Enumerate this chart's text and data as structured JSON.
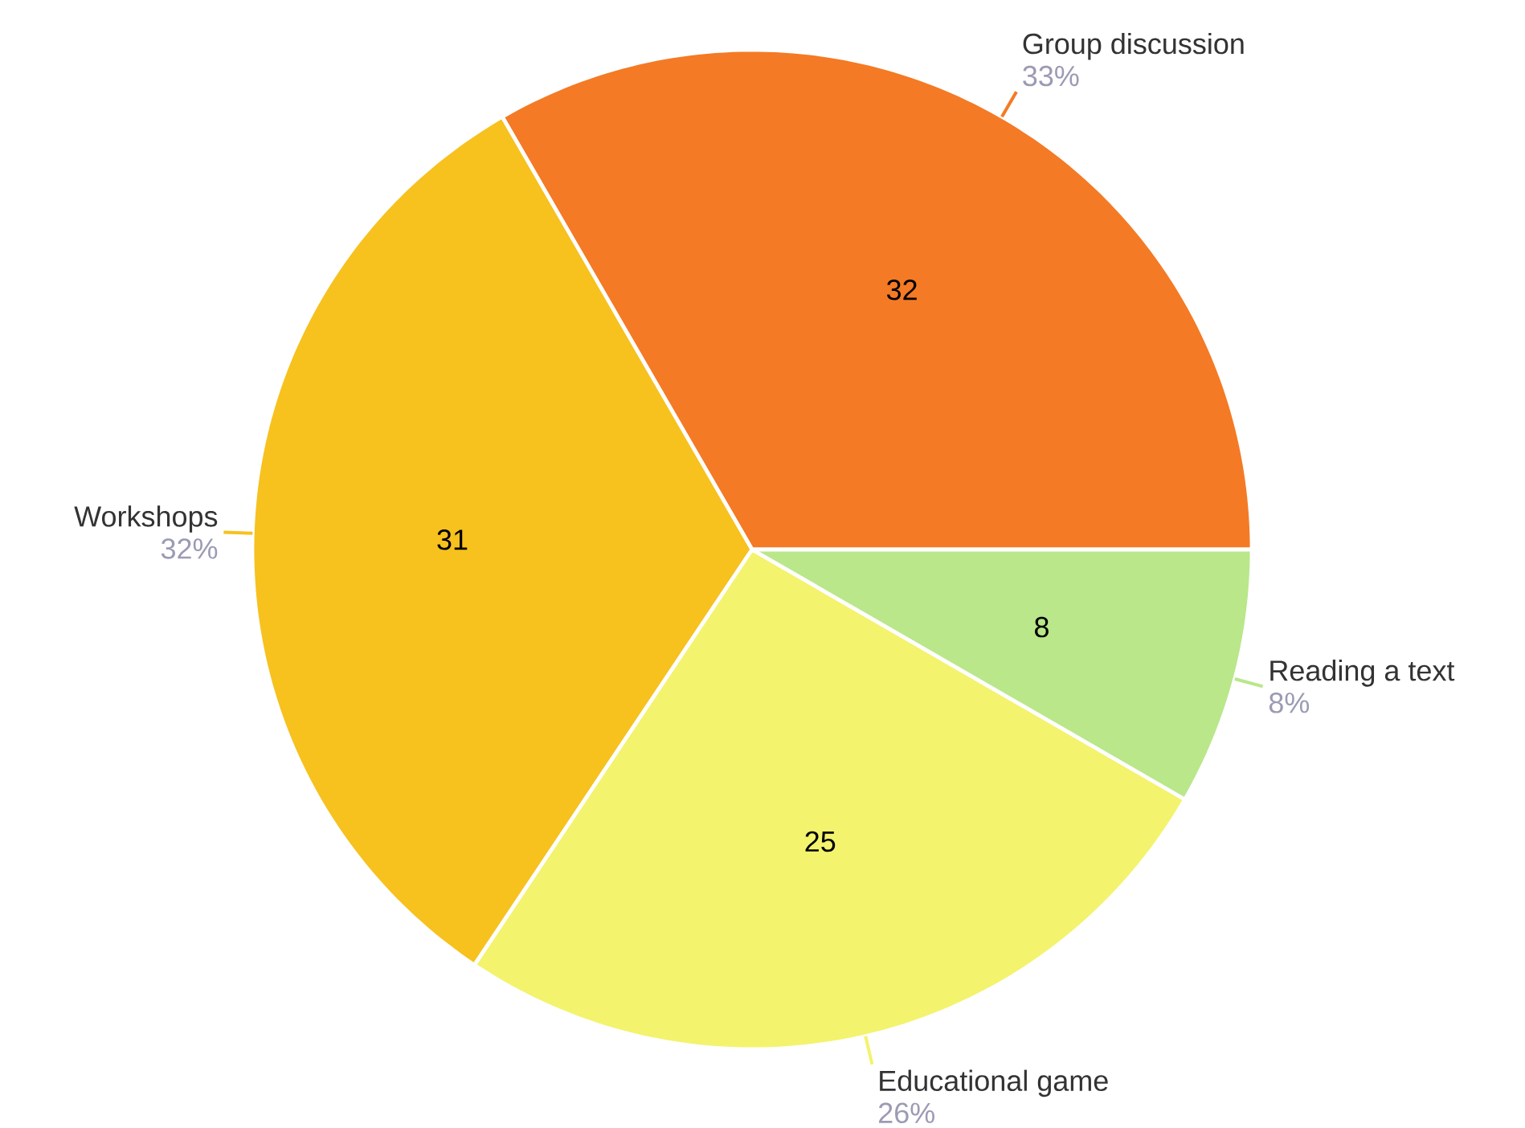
{
  "chart_data": {
    "type": "pie",
    "categories": [
      "Group discussion",
      "Workshops",
      "Educational game",
      "Reading a text"
    ],
    "values": [
      32,
      31,
      25,
      8
    ],
    "colors": [
      "#f47a25",
      "#f7c11e",
      "#f3f36e",
      "#b9e78a"
    ],
    "annotations": [
      {
        "text": "33%",
        "x": "Group discussion"
      },
      {
        "text": "32%",
        "x": "Workshops"
      },
      {
        "text": "26%",
        "x": "Educational game"
      },
      {
        "text": "8%",
        "x": "Reading a text"
      }
    ],
    "data_labels": true
  }
}
